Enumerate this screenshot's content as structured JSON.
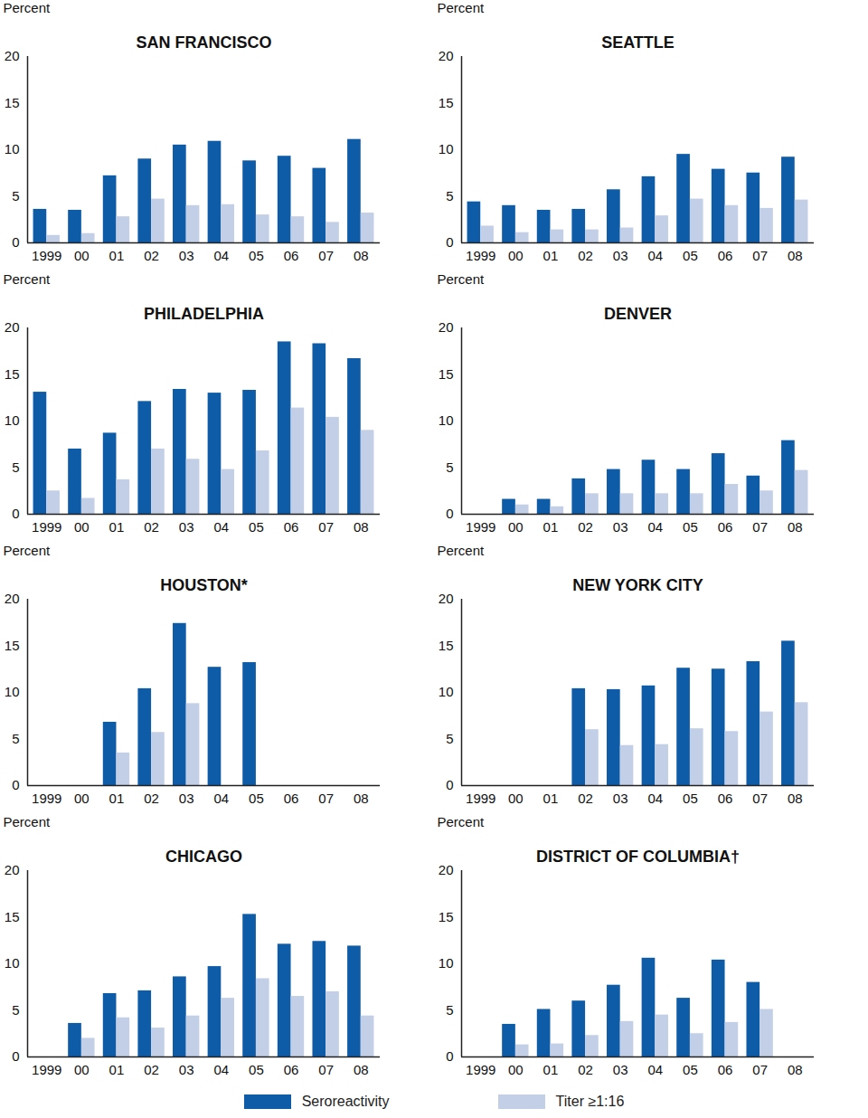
{
  "chart_data": [
    {
      "type": "bar",
      "title": "SAN FRANCISCO",
      "y_label": "Percent",
      "categories": [
        "1999",
        "00",
        "01",
        "02",
        "03",
        "04",
        "05",
        "06",
        "07",
        "08"
      ],
      "series": [
        {
          "name": "Seroreactivity",
          "color": "#0e5ba8",
          "values": [
            3.6,
            3.5,
            7.2,
            9.0,
            10.5,
            10.9,
            8.8,
            9.3,
            8.0,
            11.1
          ]
        },
        {
          "name": "Titer ≥1:16",
          "color": "#c3cfe6",
          "values": [
            0.8,
            1.0,
            2.8,
            4.7,
            4.0,
            4.1,
            3.0,
            2.8,
            2.2,
            3.2
          ]
        }
      ],
      "ylim": [
        0,
        20
      ],
      "yticks": [
        0,
        5,
        10,
        15,
        20
      ]
    },
    {
      "type": "bar",
      "title": "SEATTLE",
      "y_label": "Percent",
      "categories": [
        "1999",
        "00",
        "01",
        "02",
        "03",
        "04",
        "05",
        "06",
        "07",
        "08"
      ],
      "series": [
        {
          "name": "Seroreactivity",
          "color": "#0e5ba8",
          "values": [
            4.4,
            4.0,
            3.5,
            3.6,
            5.7,
            7.1,
            9.5,
            7.9,
            7.5,
            9.2
          ]
        },
        {
          "name": "Titer ≥1:16",
          "color": "#c3cfe6",
          "values": [
            1.8,
            1.1,
            1.4,
            1.4,
            1.6,
            2.9,
            4.7,
            4.0,
            3.7,
            4.6
          ]
        }
      ],
      "ylim": [
        0,
        20
      ],
      "yticks": [
        0,
        5,
        10,
        15,
        20
      ]
    },
    {
      "type": "bar",
      "title": "PHILADELPHIA",
      "y_label": "Percent",
      "categories": [
        "1999",
        "00",
        "01",
        "02",
        "03",
        "04",
        "05",
        "06",
        "07",
        "08"
      ],
      "series": [
        {
          "name": "Seroreactivity",
          "color": "#0e5ba8",
          "values": [
            13.1,
            7.0,
            8.7,
            12.1,
            13.4,
            13.0,
            13.3,
            18.5,
            18.3,
            16.7
          ]
        },
        {
          "name": "Titer ≥1:16",
          "color": "#c3cfe6",
          "values": [
            2.5,
            1.7,
            3.7,
            7.0,
            5.9,
            4.8,
            6.8,
            11.4,
            10.4,
            9.0
          ]
        }
      ],
      "ylim": [
        0,
        20
      ],
      "yticks": [
        0,
        5,
        10,
        15,
        20
      ]
    },
    {
      "type": "bar",
      "title": "DENVER",
      "y_label": "Percent",
      "categories": [
        "1999",
        "00",
        "01",
        "02",
        "03",
        "04",
        "05",
        "06",
        "07",
        "08"
      ],
      "series": [
        {
          "name": "Seroreactivity",
          "color": "#0e5ba8",
          "values": [
            null,
            1.6,
            1.6,
            3.8,
            4.8,
            5.8,
            4.8,
            6.5,
            4.1,
            7.9
          ]
        },
        {
          "name": "Titer ≥1:16",
          "color": "#c3cfe6",
          "values": [
            null,
            1.0,
            0.8,
            2.2,
            2.2,
            2.2,
            2.2,
            3.2,
            2.5,
            4.7
          ]
        }
      ],
      "ylim": [
        0,
        20
      ],
      "yticks": [
        0,
        5,
        10,
        15,
        20
      ]
    },
    {
      "type": "bar",
      "title": "HOUSTON*",
      "y_label": "Percent",
      "categories": [
        "1999",
        "00",
        "01",
        "02",
        "03",
        "04",
        "05",
        "06",
        "07",
        "08"
      ],
      "series": [
        {
          "name": "Seroreactivity",
          "color": "#0e5ba8",
          "values": [
            null,
            null,
            6.8,
            10.4,
            17.4,
            12.7,
            13.2,
            null,
            null,
            null
          ]
        },
        {
          "name": "Titer ≥1:16",
          "color": "#c3cfe6",
          "values": [
            null,
            null,
            3.5,
            5.7,
            8.8,
            null,
            null,
            null,
            null,
            null
          ]
        }
      ],
      "ylim": [
        0,
        20
      ],
      "yticks": [
        0,
        5,
        10,
        15,
        20
      ]
    },
    {
      "type": "bar",
      "title": "NEW YORK CITY",
      "y_label": "Percent",
      "categories": [
        "1999",
        "00",
        "01",
        "02",
        "03",
        "04",
        "05",
        "06",
        "07",
        "08"
      ],
      "series": [
        {
          "name": "Seroreactivity",
          "color": "#0e5ba8",
          "values": [
            null,
            null,
            null,
            10.4,
            10.3,
            10.7,
            12.6,
            12.5,
            13.3,
            15.5
          ]
        },
        {
          "name": "Titer ≥1:16",
          "color": "#c3cfe6",
          "values": [
            null,
            null,
            null,
            6.0,
            4.3,
            4.4,
            6.1,
            5.8,
            7.9,
            8.9
          ]
        }
      ],
      "ylim": [
        0,
        20
      ],
      "yticks": [
        0,
        5,
        10,
        15,
        20
      ]
    },
    {
      "type": "bar",
      "title": "CHICAGO",
      "y_label": "Percent",
      "categories": [
        "1999",
        "00",
        "01",
        "02",
        "03",
        "04",
        "05",
        "06",
        "07",
        "08"
      ],
      "series": [
        {
          "name": "Seroreactivity",
          "color": "#0e5ba8",
          "values": [
            null,
            3.6,
            6.8,
            7.1,
            8.6,
            9.7,
            15.3,
            12.1,
            12.4,
            11.9
          ]
        },
        {
          "name": "Titer ≥1:16",
          "color": "#c3cfe6",
          "values": [
            null,
            2.0,
            4.2,
            3.1,
            4.4,
            6.3,
            8.4,
            6.5,
            7.0,
            4.4
          ]
        }
      ],
      "ylim": [
        0,
        20
      ],
      "yticks": [
        0,
        5,
        10,
        15,
        20
      ]
    },
    {
      "type": "bar",
      "title": "DISTRICT OF COLUMBIA†",
      "y_label": "Percent",
      "categories": [
        "1999",
        "00",
        "01",
        "02",
        "03",
        "04",
        "05",
        "06",
        "07",
        "08"
      ],
      "series": [
        {
          "name": "Seroreactivity",
          "color": "#0e5ba8",
          "values": [
            null,
            3.5,
            5.1,
            6.0,
            7.7,
            10.6,
            6.3,
            10.4,
            8.0,
            null
          ]
        },
        {
          "name": "Titer ≥1:16",
          "color": "#c3cfe6",
          "values": [
            null,
            1.3,
            1.4,
            2.3,
            3.8,
            4.5,
            2.5,
            3.7,
            5.1,
            null
          ]
        }
      ],
      "ylim": [
        0,
        20
      ],
      "yticks": [
        0,
        5,
        10,
        15,
        20
      ]
    }
  ]
}
